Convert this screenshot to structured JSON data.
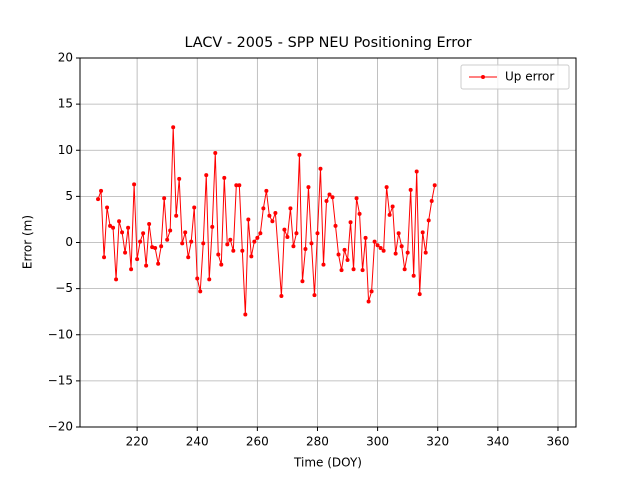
{
  "chart_data": {
    "type": "line",
    "title": "LACV - 2005 - SPP NEU Positioning Error",
    "x_label": "Time (DOY)",
    "y_label": "Error (m)",
    "x": [
      207,
      208,
      209,
      210,
      211,
      212,
      213,
      214,
      215,
      216,
      217,
      218,
      219,
      220,
      221,
      222,
      223,
      224,
      225,
      226,
      227,
      228,
      229,
      230,
      231,
      232,
      233,
      234,
      235,
      236,
      237,
      238,
      239,
      240,
      241,
      242,
      243,
      244,
      245,
      246,
      247,
      248,
      249,
      250,
      251,
      252,
      253,
      254,
      255,
      256,
      257,
      258,
      259,
      260,
      261,
      262,
      263,
      264,
      265,
      266,
      268,
      269,
      270,
      271,
      272,
      273,
      274,
      275,
      276,
      277,
      278,
      279,
      280,
      281,
      282,
      283,
      284,
      285,
      286,
      287,
      288,
      289,
      290,
      291,
      292,
      293,
      294,
      295,
      296,
      297,
      298,
      299,
      300,
      301,
      302,
      303,
      304,
      305,
      306,
      307,
      308,
      309,
      310,
      311,
      312,
      313,
      314,
      315,
      316,
      317,
      318,
      319
    ],
    "series": [
      {
        "name": "Up error",
        "color": "#ff0000",
        "values": [
          4.7,
          5.6,
          -1.6,
          3.8,
          1.8,
          1.6,
          -4.0,
          2.3,
          1.1,
          -1.1,
          1.6,
          -2.9,
          6.3,
          -1.8,
          0.1,
          1.0,
          -2.5,
          2.0,
          -0.5,
          -0.6,
          -2.3,
          -0.4,
          4.8,
          0.3,
          1.3,
          12.5,
          2.9,
          6.9,
          -0.1,
          1.1,
          -1.6,
          0.1,
          3.8,
          -3.9,
          -5.3,
          -0.1,
          7.3,
          -4.0,
          1.7,
          9.7,
          -1.3,
          -2.4,
          7.0,
          -0.2,
          0.3,
          -0.9,
          6.2,
          6.2,
          -0.9,
          -7.8,
          2.5,
          -1.5,
          0.1,
          0.5,
          1.0,
          3.7,
          5.6,
          2.9,
          2.3,
          3.2,
          -5.8,
          1.4,
          0.6,
          3.7,
          -0.4,
          1.0,
          9.5,
          -4.2,
          -0.7,
          6.0,
          -0.1,
          -5.7,
          1.0,
          8.0,
          -2.4,
          4.5,
          5.2,
          4.9,
          1.8,
          -1.3,
          -3.0,
          -0.8,
          -1.9,
          2.2,
          -2.9,
          4.8,
          3.1,
          -3.0,
          0.5,
          -6.4,
          -5.3,
          0.1,
          -0.3,
          -0.6,
          -0.9,
          6.0,
          3.0,
          3.9,
          -1.2,
          1.0,
          -0.4,
          -2.9,
          -1.1,
          5.7,
          -3.6,
          7.7,
          -5.6,
          1.1,
          -1.1,
          2.4,
          4.5,
          6.2
        ]
      }
    ],
    "xlim": [
      201,
      366
    ],
    "ylim": [
      -20,
      20
    ],
    "xticks": [
      220,
      240,
      260,
      280,
      300,
      320,
      340,
      360
    ],
    "yticks": [
      {
        "value": -20,
        "label": "−20"
      },
      {
        "value": -15,
        "label": "−15"
      },
      {
        "value": -10,
        "label": "−10"
      },
      {
        "value": -5,
        "label": "−5"
      },
      0,
      5,
      10,
      15,
      20
    ],
    "grid": true,
    "legend": "upper right"
  }
}
